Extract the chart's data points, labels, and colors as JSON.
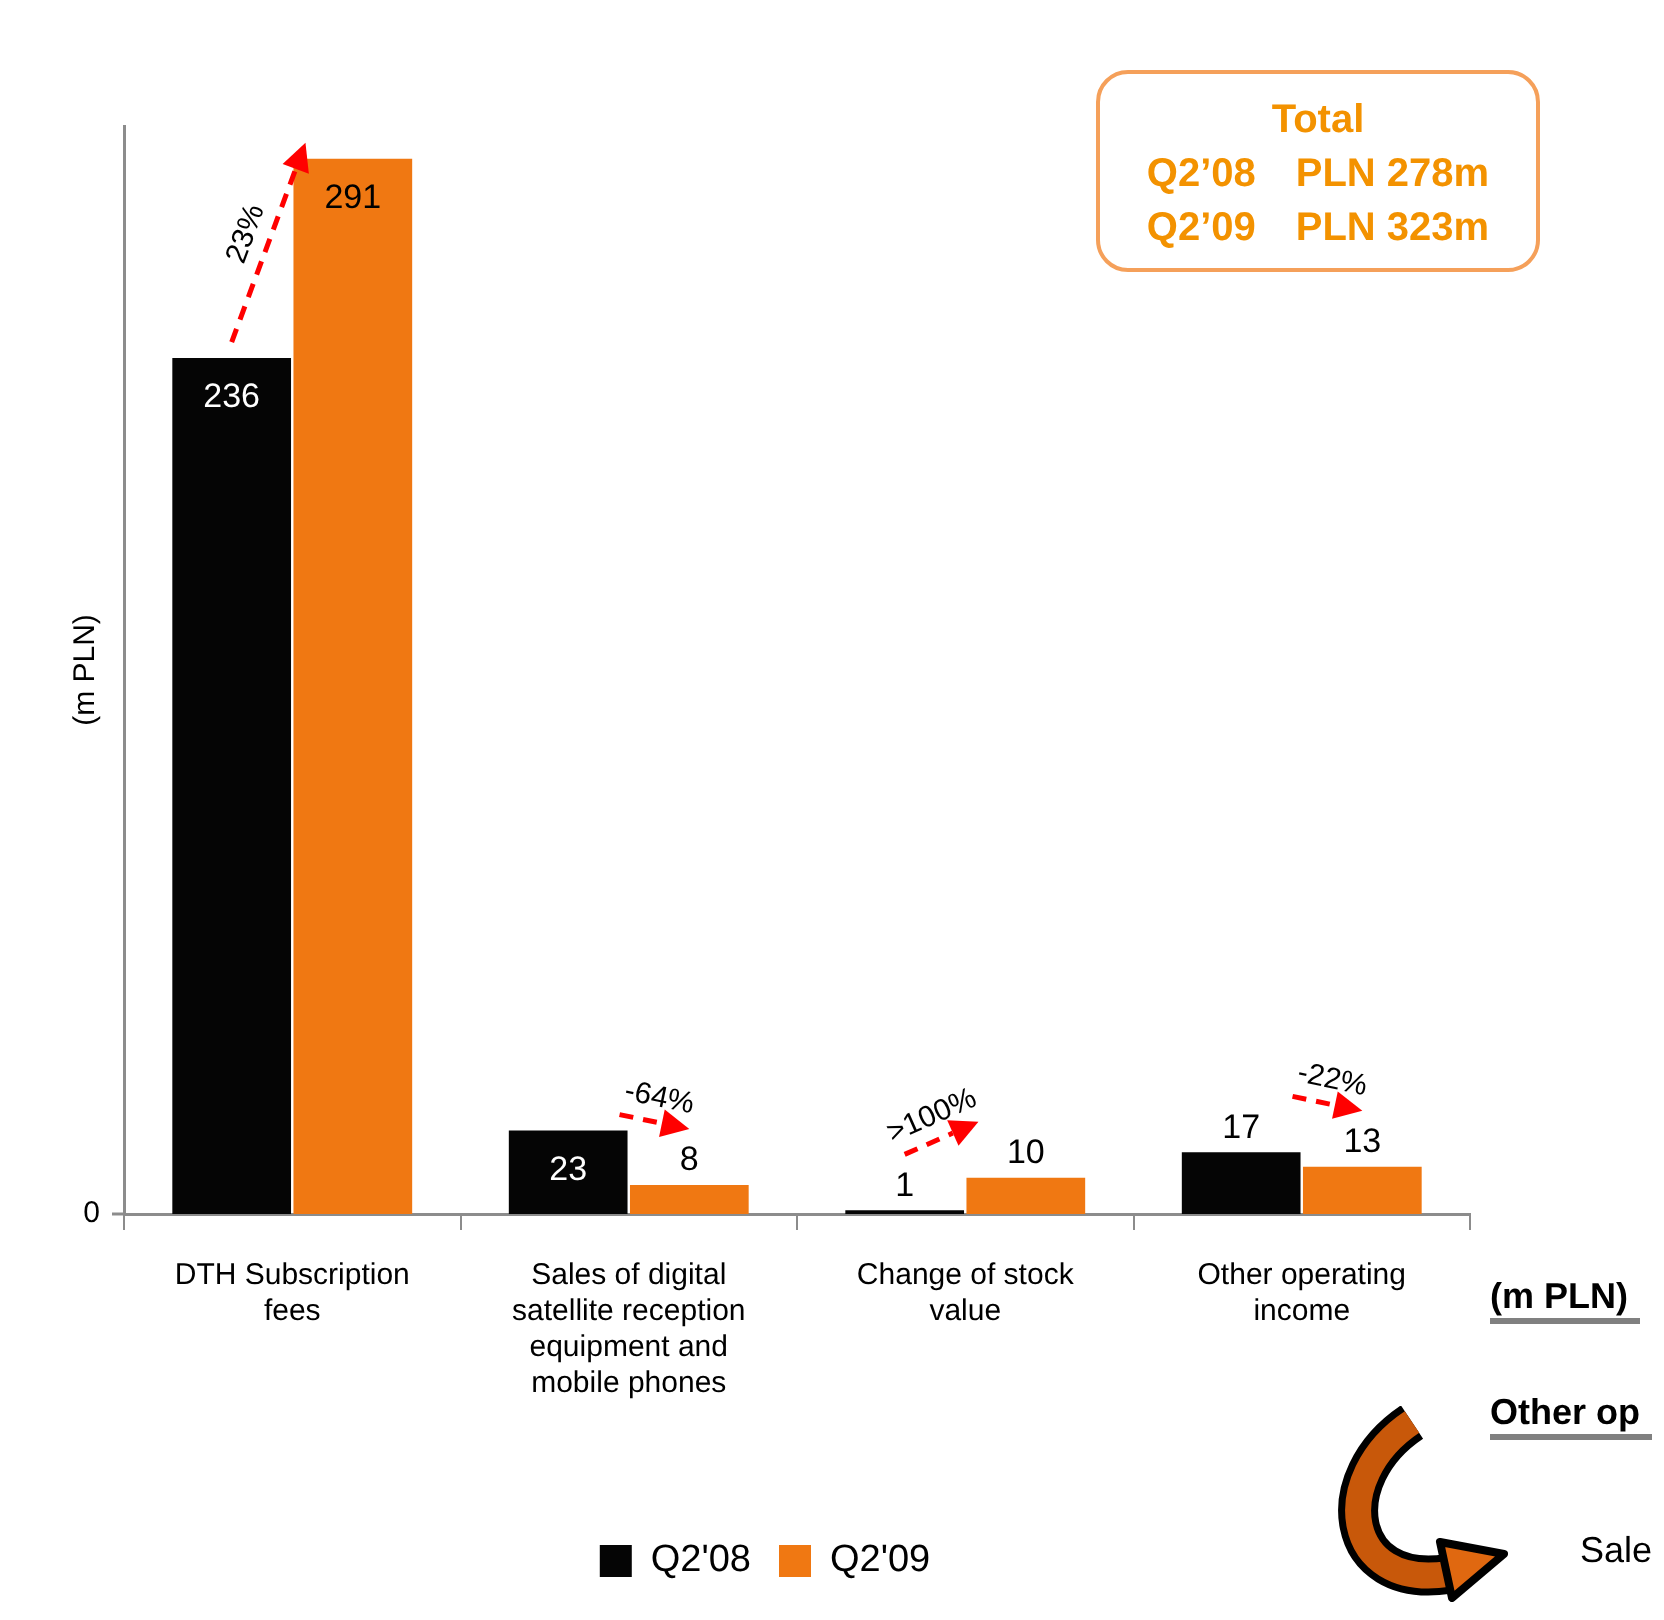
{
  "chart_data": {
    "type": "bar",
    "ylabel": "(m PLN)",
    "categories": [
      "DTH Subscription fees",
      "Sales of digital satellite reception equipment and mobile phones",
      "Change of stock value",
      "Other operating income"
    ],
    "series": [
      {
        "name": "Q2'08",
        "color": "#050505",
        "values": [
          236,
          23,
          1,
          17
        ]
      },
      {
        "name": "Q2'09",
        "color": "#f07812",
        "values": [
          291,
          8,
          10,
          13
        ]
      }
    ],
    "legend": "bottom",
    "data_labels": true,
    "annotations": [
      "0",
      {
        "text": "23%",
        "x": "DTH Subscription fees",
        "y": 291
      },
      {
        "text": "-64%",
        "x": "Sales of digital satellite reception equipment and mobile phones",
        "y": 8
      },
      {
        "text": ">100%",
        "x": "Change of stock value",
        "y": 10
      },
      {
        "text": "-22%",
        "x": "Other operating income",
        "y": 13
      },
      "Total",
      "Q2’08 PLN 278m",
      "Q2’09 PLN 323m",
      "(m PLN)",
      "Other op",
      "Sale"
    ]
  }
}
